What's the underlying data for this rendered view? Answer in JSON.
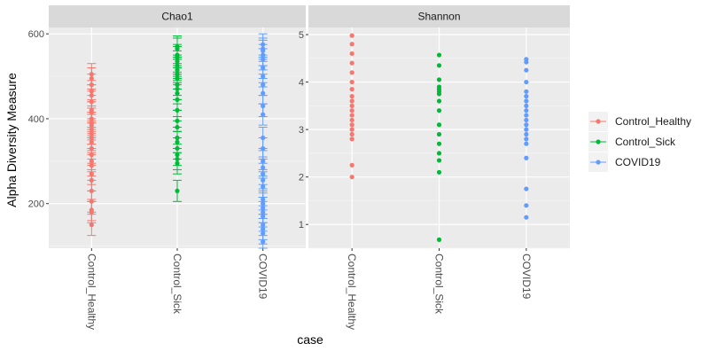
{
  "chart_data": {
    "type": "scatter",
    "xlabel": "case",
    "ylabel": "Alpha Diversity Measure",
    "categories": [
      "Control_Healthy",
      "Control_Sick",
      "COVID19"
    ],
    "legend": {
      "placement": "right",
      "entries": [
        {
          "name": "Control_Healthy",
          "color": "#F8766D"
        },
        {
          "name": "Control_Sick",
          "color": "#00BA38"
        },
        {
          "name": "COVID19",
          "color": "#619CFF"
        }
      ]
    },
    "grid": true,
    "panels": [
      {
        "title": "Chao1",
        "ylim": [
          95,
          615
        ],
        "yticks": [
          200,
          400,
          600
        ],
        "error_bars": true,
        "error_bar_half_width": 25,
        "points": {
          "Control_Healthy": [
            505,
            495,
            480,
            465,
            455,
            440,
            420,
            415,
            400,
            390,
            385,
            375,
            365,
            355,
            345,
            330,
            315,
            300,
            290,
            270,
            255,
            230,
            205,
            185,
            180,
            150
          ],
          "Control_Sick": [
            570,
            565,
            550,
            545,
            535,
            525,
            515,
            505,
            495,
            480,
            470,
            460,
            445,
            420,
            395,
            380,
            355,
            345,
            330,
            315,
            305,
            295,
            230
          ],
          "COVID19": [
            575,
            565,
            560,
            550,
            540,
            520,
            500,
            480,
            460,
            430,
            410,
            355,
            330,
            300,
            285,
            270,
            255,
            240,
            210,
            200,
            190,
            180,
            170,
            150,
            140,
            130,
            110
          ]
        }
      },
      {
        "title": "Shannon",
        "ylim": [
          0.5,
          5.15
        ],
        "yticks": [
          1,
          2,
          3,
          4,
          5
        ],
        "error_bars": false,
        "points": {
          "Control_Healthy": [
            4.98,
            4.8,
            4.6,
            4.4,
            4.2,
            4.0,
            3.85,
            3.7,
            3.6,
            3.5,
            3.4,
            3.3,
            3.2,
            3.1,
            3.0,
            2.9,
            2.8,
            2.25,
            2.0
          ],
          "Control_Sick": [
            4.57,
            4.35,
            4.05,
            3.9,
            3.85,
            3.8,
            3.75,
            3.6,
            3.4,
            3.1,
            2.9,
            2.7,
            2.5,
            2.35,
            2.1,
            0.68
          ],
          "COVID19": [
            4.48,
            4.42,
            4.25,
            4.0,
            3.8,
            3.7,
            3.6,
            3.5,
            3.4,
            3.3,
            3.2,
            3.1,
            3.0,
            2.9,
            2.8,
            2.7,
            2.4,
            1.75,
            1.4,
            1.15
          ]
        }
      }
    ]
  }
}
